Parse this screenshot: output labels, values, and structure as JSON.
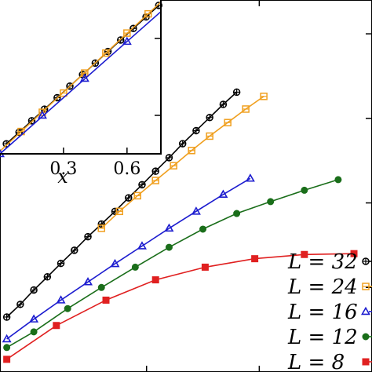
{
  "chart_data": [
    {
      "panel": "main",
      "type": "line",
      "x_axis": {
        "range": [
          -0.15,
          1.5
        ],
        "ticks_visible": []
      },
      "y_axis": {
        "range": [
          0.1,
          0.98
        ]
      },
      "grid": false,
      "legend": {
        "placement": "bottom-right",
        "entries": [
          "L = 32",
          "L = 24",
          "L = 16",
          "L = 12",
          "L = 8"
        ]
      },
      "series": [
        {
          "name": "L = 32",
          "color": "#000000",
          "marker": "circle-plus",
          "x": [
            -0.12,
            -0.06,
            0.0,
            0.06,
            0.12,
            0.18,
            0.24,
            0.3,
            0.36,
            0.42,
            0.48,
            0.54,
            0.6,
            0.66,
            0.72,
            0.78,
            0.84,
            0.9
          ],
          "y": [
            0.23,
            0.26,
            0.294,
            0.325,
            0.357,
            0.388,
            0.42,
            0.45,
            0.48,
            0.512,
            0.543,
            0.575,
            0.607,
            0.64,
            0.671,
            0.702,
            0.733,
            0.762
          ]
        },
        {
          "name": "L = 24",
          "color": "#f0a020",
          "marker": "square-open",
          "x": [
            0.3,
            0.38,
            0.46,
            0.54,
            0.62,
            0.7,
            0.78,
            0.86,
            0.94,
            1.02
          ],
          "y": [
            0.44,
            0.48,
            0.517,
            0.553,
            0.588,
            0.624,
            0.658,
            0.69,
            0.722,
            0.752
          ]
        },
        {
          "name": "L = 16",
          "color": "#1c1ccf",
          "marker": "triangle-open",
          "x": [
            -0.12,
            0.0,
            0.12,
            0.24,
            0.36,
            0.48,
            0.6,
            0.72,
            0.84,
            0.96
          ],
          "y": [
            0.178,
            0.225,
            0.27,
            0.313,
            0.356,
            0.398,
            0.44,
            0.48,
            0.52,
            0.558
          ]
        },
        {
          "name": "L = 12",
          "color": "#1a6e1a",
          "marker": "circle-filled",
          "x": [
            -0.12,
            0.0,
            0.15,
            0.3,
            0.45,
            0.6,
            0.75,
            0.9,
            1.05,
            1.2,
            1.35
          ],
          "y": [
            0.158,
            0.195,
            0.25,
            0.3,
            0.348,
            0.395,
            0.438,
            0.475,
            0.503,
            0.53,
            0.555
          ]
        },
        {
          "name": "L = 8",
          "color": "#e02020",
          "marker": "square-filled",
          "x": [
            -0.12,
            0.1,
            0.32,
            0.54,
            0.76,
            0.98,
            1.2,
            1.42
          ],
          "y": [
            0.13,
            0.21,
            0.27,
            0.318,
            0.348,
            0.368,
            0.378,
            0.38
          ]
        }
      ]
    },
    {
      "panel": "inset",
      "type": "line",
      "xlabel": "x",
      "x_axis": {
        "range": [
          0.0,
          0.76
        ],
        "ticks": [
          0.3,
          0.6
        ],
        "tick_labels": [
          "0.3",
          "0.6"
        ]
      },
      "y_axis": {
        "range": [
          0.0,
          1.0
        ]
      },
      "grid": false,
      "series": [
        {
          "name": "L = 32",
          "color": "#000000",
          "marker": "circle-plus",
          "x": [
            0.03,
            0.09,
            0.15,
            0.21,
            0.27,
            0.33,
            0.39,
            0.45,
            0.51,
            0.57,
            0.63,
            0.69,
            0.75
          ],
          "y": [
            0.065,
            0.14,
            0.215,
            0.29,
            0.365,
            0.44,
            0.515,
            0.59,
            0.665,
            0.74,
            0.815,
            0.89,
            0.965
          ]
        },
        {
          "name": "L = 24",
          "color": "#f0a020",
          "marker": "square-open",
          "x": [
            0.1,
            0.2,
            0.3,
            0.4,
            0.5,
            0.6,
            0.7
          ],
          "y": [
            0.145,
            0.27,
            0.395,
            0.525,
            0.655,
            0.785,
            0.91
          ],
          "line_x_range": [
            0.0,
            0.76
          ]
        },
        {
          "name": "L = 16",
          "color": "#1c1ccf",
          "marker": "triangle-open",
          "x": [
            0.0,
            0.2,
            0.4,
            0.6
          ],
          "y": [
            0.0,
            0.25,
            0.49,
            0.73
          ],
          "line_x_range": [
            0.0,
            0.76
          ]
        }
      ]
    }
  ]
}
